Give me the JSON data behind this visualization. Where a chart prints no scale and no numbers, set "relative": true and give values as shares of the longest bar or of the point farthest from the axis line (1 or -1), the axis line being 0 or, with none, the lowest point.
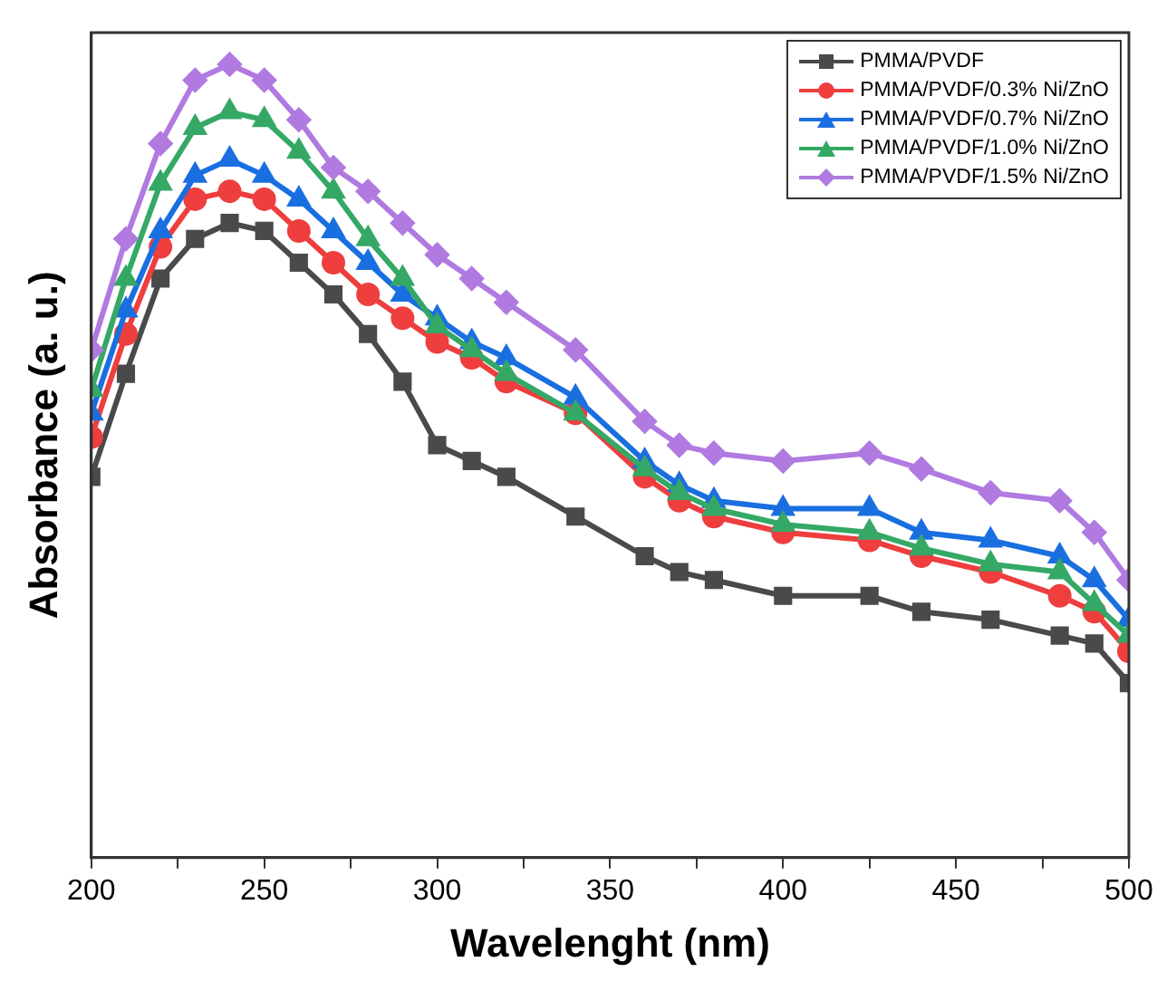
{
  "chart_data": {
    "type": "line",
    "xlabel": "Wavelenght (nm)",
    "ylabel": "Absorbance (a. u.)",
    "relative": true,
    "xlim": [
      200,
      500
    ],
    "xticks": [
      200,
      {
        "value": 225,
        "label": null
      },
      250,
      {
        "value": 275,
        "label": null
      },
      300,
      {
        "value": 325,
        "label": null
      },
      350,
      {
        "value": 375,
        "label": null
      },
      400,
      {
        "value": 425,
        "label": null
      },
      450,
      {
        "value": 475,
        "label": null
      },
      500
    ],
    "legend": "top right",
    "grid": false,
    "x": [
      200,
      210,
      220,
      230,
      240,
      250,
      260,
      270,
      280,
      290,
      300,
      310,
      320,
      340,
      360,
      370,
      380,
      400,
      425,
      440,
      460,
      480,
      490,
      500
    ],
    "series": [
      {
        "name": "PMMA/PVDF",
        "color": "#4a4a4a",
        "marker": "square",
        "values": [
          0.48,
          0.61,
          0.73,
          0.78,
          0.8,
          0.79,
          0.75,
          0.71,
          0.66,
          0.6,
          0.52,
          0.5,
          0.48,
          0.43,
          0.38,
          0.36,
          0.35,
          0.33,
          0.33,
          0.31,
          0.3,
          0.28,
          0.27,
          0.22
        ]
      },
      {
        "name": "PMMA/PVDF/0.3% Ni/ZnO",
        "color": "#ee3e3e",
        "marker": "circle",
        "values": [
          0.53,
          0.66,
          0.77,
          0.83,
          0.84,
          0.83,
          0.79,
          0.75,
          0.71,
          0.68,
          0.65,
          0.63,
          0.6,
          0.56,
          0.48,
          0.45,
          0.43,
          0.41,
          0.4,
          0.38,
          0.36,
          0.33,
          0.31,
          0.26
        ]
      },
      {
        "name": "PMMA/PVDF/0.7% Ni/ZnO",
        "color": "#1a6fe0",
        "marker": "triangle",
        "values": [
          0.56,
          0.69,
          0.79,
          0.86,
          0.88,
          0.86,
          0.83,
          0.79,
          0.75,
          0.71,
          0.68,
          0.65,
          0.63,
          0.58,
          0.5,
          0.47,
          0.45,
          0.44,
          0.44,
          0.41,
          0.4,
          0.38,
          0.35,
          0.3
        ]
      },
      {
        "name": "PMMA/PVDF/1.0% Ni/ZnO",
        "color": "#35a866",
        "marker": "triangle",
        "values": [
          0.59,
          0.73,
          0.85,
          0.92,
          0.94,
          0.93,
          0.89,
          0.84,
          0.78,
          0.73,
          0.67,
          0.64,
          0.61,
          0.56,
          0.49,
          0.46,
          0.44,
          0.42,
          0.41,
          0.39,
          0.37,
          0.36,
          0.32,
          0.28
        ]
      },
      {
        "name": "PMMA/PVDF/1.5% Ni/ZnO",
        "color": "#b07ae0",
        "marker": "diamond",
        "values": [
          0.64,
          0.78,
          0.9,
          0.98,
          1,
          0.98,
          0.93,
          0.87,
          0.84,
          0.8,
          0.76,
          0.73,
          0.7,
          0.64,
          0.55,
          0.52,
          0.51,
          0.5,
          0.51,
          0.49,
          0.46,
          0.45,
          0.41,
          0.35
        ]
      }
    ]
  }
}
